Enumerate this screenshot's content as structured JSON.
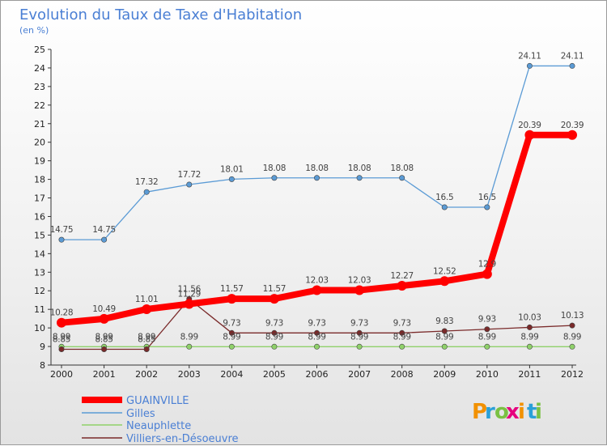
{
  "chart_data": {
    "type": "line",
    "title": "Evolution du Taux de Taxe d'Habitation",
    "subtitle": "(en %)",
    "x": [
      "2000",
      "2001",
      "2002",
      "2003",
      "2004",
      "2005",
      "2006",
      "2007",
      "2008",
      "2009",
      "2010",
      "2011",
      "2012"
    ],
    "ylim": [
      8,
      25
    ],
    "yticks": [
      8,
      9,
      10,
      11,
      12,
      13,
      14,
      15,
      16,
      17,
      18,
      19,
      20,
      21,
      22,
      23,
      24,
      25
    ],
    "grid": false,
    "legend_position": "bottom-left",
    "series": [
      {
        "name": "GUAINVILLE",
        "color": "#ff0000",
        "values": [
          10.28,
          10.49,
          11.01,
          11.29,
          11.57,
          11.57,
          12.03,
          12.03,
          12.27,
          12.52,
          12.9,
          20.39,
          20.39
        ],
        "labels": [
          "10.28",
          "10.49",
          "11.01",
          "11.29",
          "11.57",
          "11.57",
          "12.03",
          "12.03",
          "12.27",
          "12.52",
          "12.9",
          "20.39",
          "20.39"
        ]
      },
      {
        "name": "Gilles",
        "color": "#5b9bd5",
        "values": [
          14.75,
          14.75,
          17.32,
          17.72,
          18.01,
          18.08,
          18.08,
          18.08,
          18.08,
          16.5,
          16.5,
          24.11,
          24.11
        ],
        "labels": [
          "14.75",
          "14.75",
          "17.32",
          "17.72",
          "18.01",
          "18.08",
          "18.08",
          "18.08",
          "18.08",
          "16.5",
          "16.5",
          "24.11",
          "24.11"
        ]
      },
      {
        "name": "Neauphlette",
        "color": "#8fd16a",
        "values": [
          8.99,
          8.99,
          8.99,
          8.99,
          8.99,
          8.99,
          8.99,
          8.99,
          8.99,
          8.99,
          8.99,
          8.99,
          8.99
        ],
        "labels": [
          "8.99",
          "8.99",
          "8.99",
          "8.99",
          "8.99",
          "8.99",
          "8.99",
          "8.99",
          "8.99",
          "8.99",
          "8.99",
          "8.99",
          "8.99"
        ]
      },
      {
        "name": "Villiers-en-Désoeuvre",
        "color": "#7a2a2a",
        "values": [
          8.85,
          8.85,
          8.85,
          11.56,
          9.73,
          9.73,
          9.73,
          9.73,
          9.73,
          9.83,
          9.93,
          10.03,
          10.13
        ],
        "labels": [
          "8.85",
          "8.85",
          "8.85",
          "11.56",
          "9.73",
          "9.73",
          "9.73",
          "9.73",
          "9.73",
          "9.83",
          "9.93",
          "10.03",
          "10.13"
        ]
      }
    ]
  },
  "logo": {
    "text": "Proxiti",
    "colors": [
      "#f29100",
      "#2aa0d8",
      "#7ac143",
      "#e6007e",
      "#f29100",
      "#2aa0d8",
      "#7ac143"
    ]
  }
}
